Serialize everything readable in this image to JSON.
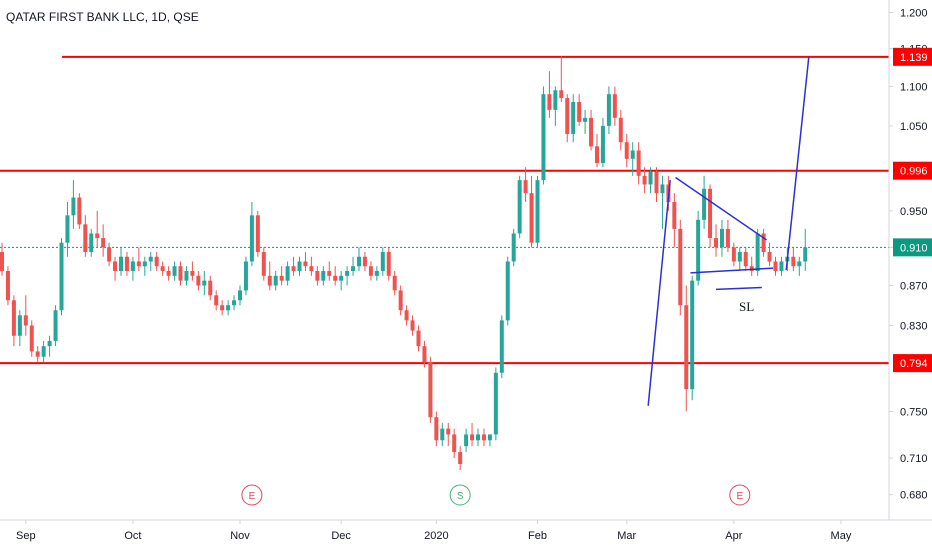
{
  "title": "QATAR FIRST BANK LLC, 1D, QSE",
  "colors": {
    "up": "#26a69a",
    "down": "#ef5350",
    "level": "#ff0000",
    "trendline": "#2d2fd6",
    "current": "#0a9981",
    "axis": "#d1d4dc",
    "event_e": "#e0465a",
    "event_s": "#4caf74"
  },
  "y_ticks": [
    "1.200",
    "1.150",
    "1.100",
    "1.050",
    "0.950",
    "0.910",
    "0.870",
    "0.830",
    "0.750",
    "0.710",
    "0.680"
  ],
  "x_ticks": [
    "Sep",
    "Oct",
    "Nov",
    "Dec",
    "2020",
    "Feb",
    "Mar",
    "Apr",
    "May"
  ],
  "events": [
    {
      "label": "E",
      "index": 42
    },
    {
      "label": "S",
      "index": 77
    },
    {
      "label": "E",
      "index": 124
    }
  ],
  "annotation": "SL",
  "chart_data": {
    "type": "candlestick",
    "title": "QATAR FIRST BANK LLC, 1D, QSE",
    "ylim": [
      0.66,
      1.215
    ],
    "y_scale": "log",
    "grid": false,
    "levels": [
      {
        "value": 1.139,
        "label": "1.139"
      },
      {
        "value": 0.996,
        "label": "0.996"
      },
      {
        "value": 0.794,
        "label": "0.794"
      }
    ],
    "current_price": {
      "value": 0.91,
      "label": "0.910"
    },
    "candles": [
      [
        0.905,
        0.915,
        0.88,
        0.885
      ],
      [
        0.885,
        0.89,
        0.85,
        0.855
      ],
      [
        0.855,
        0.86,
        0.81,
        0.82
      ],
      [
        0.82,
        0.845,
        0.81,
        0.84
      ],
      [
        0.84,
        0.86,
        0.82,
        0.83
      ],
      [
        0.83,
        0.835,
        0.8,
        0.805
      ],
      [
        0.805,
        0.81,
        0.795,
        0.8
      ],
      [
        0.8,
        0.815,
        0.795,
        0.81
      ],
      [
        0.81,
        0.82,
        0.8,
        0.815
      ],
      [
        0.815,
        0.85,
        0.81,
        0.845
      ],
      [
        0.845,
        0.92,
        0.84,
        0.915
      ],
      [
        0.915,
        0.96,
        0.9,
        0.945
      ],
      [
        0.945,
        0.985,
        0.93,
        0.965
      ],
      [
        0.965,
        0.97,
        0.93,
        0.935
      ],
      [
        0.935,
        0.945,
        0.9,
        0.905
      ],
      [
        0.905,
        0.93,
        0.9,
        0.925
      ],
      [
        0.925,
        0.95,
        0.91,
        0.92
      ],
      [
        0.92,
        0.935,
        0.9,
        0.91
      ],
      [
        0.91,
        0.915,
        0.89,
        0.895
      ],
      [
        0.895,
        0.9,
        0.875,
        0.885
      ],
      [
        0.885,
        0.91,
        0.88,
        0.9
      ],
      [
        0.9,
        0.905,
        0.88,
        0.885
      ],
      [
        0.885,
        0.9,
        0.875,
        0.895
      ],
      [
        0.895,
        0.91,
        0.885,
        0.89
      ],
      [
        0.89,
        0.9,
        0.88,
        0.895
      ],
      [
        0.895,
        0.905,
        0.885,
        0.9
      ],
      [
        0.9,
        0.905,
        0.885,
        0.89
      ],
      [
        0.89,
        0.895,
        0.88,
        0.885
      ],
      [
        0.885,
        0.89,
        0.875,
        0.88
      ],
      [
        0.88,
        0.895,
        0.875,
        0.89
      ],
      [
        0.89,
        0.895,
        0.87,
        0.875
      ],
      [
        0.875,
        0.89,
        0.87,
        0.885
      ],
      [
        0.885,
        0.895,
        0.875,
        0.88
      ],
      [
        0.88,
        0.885,
        0.865,
        0.87
      ],
      [
        0.87,
        0.885,
        0.86,
        0.875
      ],
      [
        0.875,
        0.88,
        0.855,
        0.86
      ],
      [
        0.86,
        0.865,
        0.845,
        0.85
      ],
      [
        0.85,
        0.855,
        0.84,
        0.845
      ],
      [
        0.845,
        0.855,
        0.84,
        0.85
      ],
      [
        0.85,
        0.86,
        0.845,
        0.855
      ],
      [
        0.855,
        0.87,
        0.85,
        0.865
      ],
      [
        0.865,
        0.9,
        0.86,
        0.895
      ],
      [
        0.895,
        0.96,
        0.89,
        0.945
      ],
      [
        0.945,
        0.95,
        0.9,
        0.905
      ],
      [
        0.905,
        0.91,
        0.875,
        0.88
      ],
      [
        0.88,
        0.895,
        0.865,
        0.87
      ],
      [
        0.87,
        0.885,
        0.865,
        0.88
      ],
      [
        0.88,
        0.89,
        0.87,
        0.875
      ],
      [
        0.875,
        0.895,
        0.87,
        0.89
      ],
      [
        0.89,
        0.9,
        0.88,
        0.885
      ],
      [
        0.885,
        0.9,
        0.88,
        0.895
      ],
      [
        0.895,
        0.905,
        0.885,
        0.89
      ],
      [
        0.89,
        0.9,
        0.88,
        0.885
      ],
      [
        0.885,
        0.89,
        0.87,
        0.875
      ],
      [
        0.875,
        0.89,
        0.87,
        0.885
      ],
      [
        0.885,
        0.895,
        0.875,
        0.88
      ],
      [
        0.88,
        0.89,
        0.87,
        0.875
      ],
      [
        0.875,
        0.885,
        0.865,
        0.88
      ],
      [
        0.88,
        0.89,
        0.87,
        0.885
      ],
      [
        0.885,
        0.9,
        0.88,
        0.89
      ],
      [
        0.89,
        0.91,
        0.885,
        0.9
      ],
      [
        0.9,
        0.905,
        0.885,
        0.89
      ],
      [
        0.89,
        0.895,
        0.875,
        0.88
      ],
      [
        0.88,
        0.89,
        0.875,
        0.885
      ],
      [
        0.885,
        0.91,
        0.88,
        0.905
      ],
      [
        0.905,
        0.91,
        0.875,
        0.88
      ],
      [
        0.88,
        0.885,
        0.86,
        0.865
      ],
      [
        0.865,
        0.87,
        0.84,
        0.845
      ],
      [
        0.845,
        0.85,
        0.83,
        0.835
      ],
      [
        0.835,
        0.84,
        0.82,
        0.825
      ],
      [
        0.825,
        0.83,
        0.805,
        0.81
      ],
      [
        0.81,
        0.815,
        0.79,
        0.795
      ],
      [
        0.795,
        0.8,
        0.74,
        0.745
      ],
      [
        0.745,
        0.75,
        0.72,
        0.725
      ],
      [
        0.725,
        0.74,
        0.72,
        0.735
      ],
      [
        0.735,
        0.74,
        0.72,
        0.73
      ],
      [
        0.73,
        0.735,
        0.71,
        0.715
      ],
      [
        0.715,
        0.72,
        0.7,
        0.705
      ],
      [
        0.72,
        0.735,
        0.715,
        0.73
      ],
      [
        0.73,
        0.74,
        0.72,
        0.725
      ],
      [
        0.725,
        0.735,
        0.72,
        0.73
      ],
      [
        0.73,
        0.735,
        0.72,
        0.725
      ],
      [
        0.725,
        0.73,
        0.72,
        0.73
      ],
      [
        0.73,
        0.79,
        0.725,
        0.785
      ],
      [
        0.785,
        0.84,
        0.78,
        0.835
      ],
      [
        0.835,
        0.9,
        0.83,
        0.895
      ],
      [
        0.895,
        0.93,
        0.89,
        0.925
      ],
      [
        0.925,
        0.99,
        0.92,
        0.985
      ],
      [
        0.985,
        1.0,
        0.96,
        0.97
      ],
      [
        0.97,
        0.99,
        0.91,
        0.915
      ],
      [
        0.915,
        0.99,
        0.91,
        0.985
      ],
      [
        0.985,
        1.1,
        0.98,
        1.09
      ],
      [
        1.09,
        1.12,
        1.06,
        1.07
      ],
      [
        1.07,
        1.1,
        1.05,
        1.095
      ],
      [
        1.095,
        1.14,
        1.08,
        1.085
      ],
      [
        1.085,
        1.09,
        1.03,
        1.04
      ],
      [
        1.04,
        1.09,
        1.03,
        1.08
      ],
      [
        1.08,
        1.09,
        1.05,
        1.055
      ],
      [
        1.055,
        1.07,
        1.04,
        1.06
      ],
      [
        1.06,
        1.07,
        1.02,
        1.025
      ],
      [
        1.025,
        1.04,
        1.0,
        1.005
      ],
      [
        1.005,
        1.06,
        1.0,
        1.05
      ],
      [
        1.05,
        1.1,
        1.04,
        1.09
      ],
      [
        1.09,
        1.1,
        1.05,
        1.06
      ],
      [
        1.06,
        1.07,
        1.02,
        1.03
      ],
      [
        1.03,
        1.04,
        1.0,
        1.01
      ],
      [
        1.01,
        1.03,
        0.99,
        1.02
      ],
      [
        1.02,
        1.03,
        0.98,
        0.99
      ],
      [
        0.99,
        1.0,
        0.97,
        0.98
      ],
      [
        0.98,
        1.0,
        0.97,
        0.995
      ],
      [
        0.995,
        1.0,
        0.96,
        0.97
      ],
      [
        0.97,
        0.99,
        0.93,
        0.98
      ],
      [
        0.98,
        0.99,
        0.95,
        0.96
      ],
      [
        0.96,
        0.97,
        0.91,
        0.93
      ],
      [
        0.93,
        0.94,
        0.84,
        0.85
      ],
      [
        0.85,
        0.87,
        0.75,
        0.77
      ],
      [
        0.77,
        0.88,
        0.76,
        0.875
      ],
      [
        0.875,
        0.95,
        0.87,
        0.94
      ],
      [
        0.94,
        0.99,
        0.93,
        0.975
      ],
      [
        0.975,
        0.98,
        0.91,
        0.92
      ],
      [
        0.92,
        0.935,
        0.9,
        0.91
      ],
      [
        0.91,
        0.94,
        0.9,
        0.93
      ],
      [
        0.93,
        0.94,
        0.905,
        0.91
      ],
      [
        0.91,
        0.915,
        0.89,
        0.895
      ],
      [
        0.895,
        0.91,
        0.885,
        0.905
      ],
      [
        0.905,
        0.91,
        0.885,
        0.89
      ],
      [
        0.89,
        0.9,
        0.88,
        0.885
      ],
      [
        0.885,
        0.93,
        0.88,
        0.925
      ],
      [
        0.925,
        0.93,
        0.9,
        0.905
      ],
      [
        0.905,
        0.915,
        0.89,
        0.895
      ],
      [
        0.895,
        0.9,
        0.88,
        0.885
      ],
      [
        0.885,
        0.9,
        0.88,
        0.895
      ],
      [
        0.895,
        0.91,
        0.885,
        0.9
      ],
      [
        0.9,
        0.91,
        0.885,
        0.89
      ],
      [
        0.89,
        0.9,
        0.88,
        0.895
      ],
      [
        0.895,
        0.93,
        0.885,
        0.91
      ]
    ]
  }
}
